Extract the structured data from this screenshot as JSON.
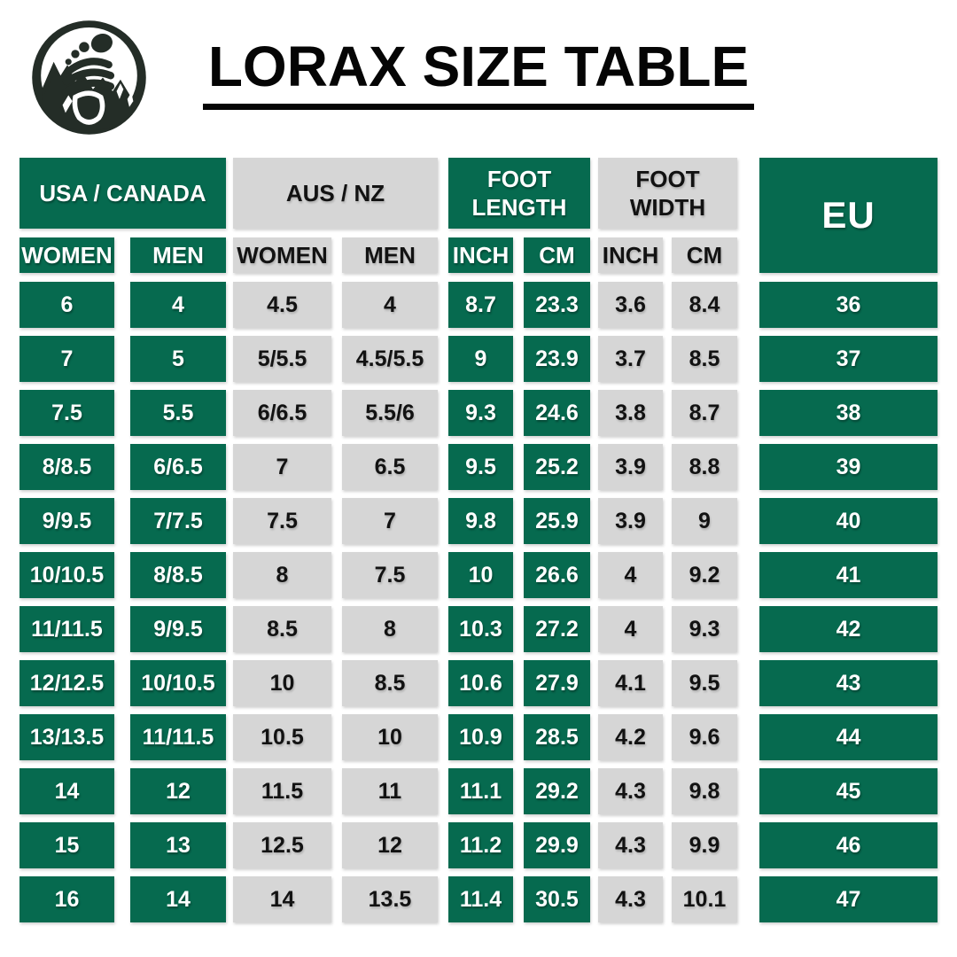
{
  "title": "LORAX SIZE TABLE",
  "logo": {
    "icon": "barefoot-mountain-logo"
  },
  "colors": {
    "green": "#066A4F",
    "gray": "#D6D6D6",
    "logo_dark": "#242D27",
    "title_ink": "#050505"
  },
  "chart_data": {
    "type": "table",
    "title": "LORAX SIZE TABLE",
    "column_groups": [
      {
        "label": "USA / CANADA",
        "color": "green",
        "columns": [
          "WOMEN",
          "MEN"
        ]
      },
      {
        "label": "AUS / NZ",
        "color": "gray",
        "columns": [
          "WOMEN",
          "MEN"
        ]
      },
      {
        "label": "FOOT LENGTH",
        "color": "green",
        "columns": [
          "INCH",
          "CM"
        ]
      },
      {
        "label": "FOOT WIDTH",
        "color": "gray",
        "columns": [
          "INCH",
          "CM"
        ]
      },
      {
        "label": "EU",
        "color": "green",
        "columns": []
      }
    ],
    "rows": [
      [
        "6",
        "4",
        "4.5",
        "4",
        "8.7",
        "23.3",
        "3.6",
        "8.4",
        "36"
      ],
      [
        "7",
        "5",
        "5/5.5",
        "4.5/5.5",
        "9",
        "23.9",
        "3.7",
        "8.5",
        "37"
      ],
      [
        "7.5",
        "5.5",
        "6/6.5",
        "5.5/6",
        "9.3",
        "24.6",
        "3.8",
        "8.7",
        "38"
      ],
      [
        "8/8.5",
        "6/6.5",
        "7",
        "6.5",
        "9.5",
        "25.2",
        "3.9",
        "8.8",
        "39"
      ],
      [
        "9/9.5",
        "7/7.5",
        "7.5",
        "7",
        "9.8",
        "25.9",
        "3.9",
        "9",
        "40"
      ],
      [
        "10/10.5",
        "8/8.5",
        "8",
        "7.5",
        "10",
        "26.6",
        "4",
        "9.2",
        "41"
      ],
      [
        "11/11.5",
        "9/9.5",
        "8.5",
        "8",
        "10.3",
        "27.2",
        "4",
        "9.3",
        "42"
      ],
      [
        "12/12.5",
        "10/10.5",
        "10",
        "8.5",
        "10.6",
        "27.9",
        "4.1",
        "9.5",
        "43"
      ],
      [
        "13/13.5",
        "11/11.5",
        "10.5",
        "10",
        "10.9",
        "28.5",
        "4.2",
        "9.6",
        "44"
      ],
      [
        "14",
        "12",
        "11.5",
        "11",
        "11.1",
        "29.2",
        "4.3",
        "9.8",
        "45"
      ],
      [
        "15",
        "13",
        "12.5",
        "12",
        "11.2",
        "29.9",
        "4.3",
        "9.9",
        "46"
      ],
      [
        "16",
        "14",
        "14",
        "13.5",
        "11.4",
        "30.5",
        "4.3",
        "10.1",
        "47"
      ]
    ]
  }
}
